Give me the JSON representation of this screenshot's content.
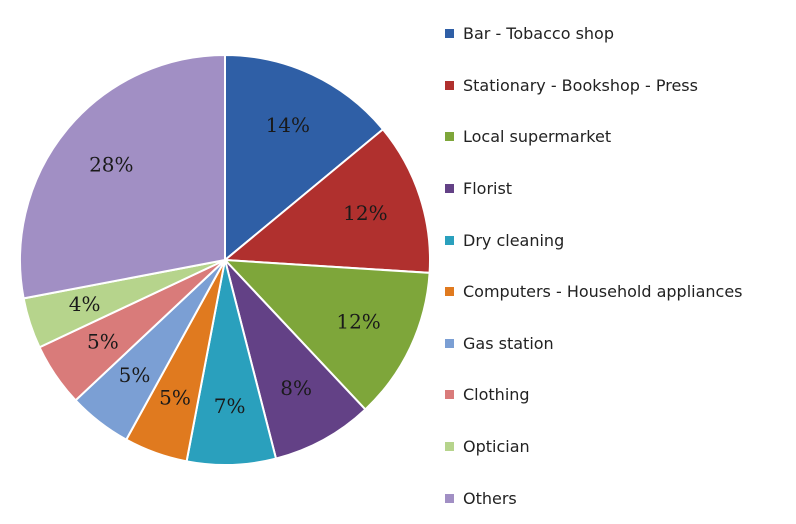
{
  "chart_data": {
    "type": "pie",
    "title": "",
    "legend_position": "right",
    "slices": [
      {
        "label": "Bar - Tobacco shop",
        "value": 14,
        "display": "14%",
        "color": "#2f5fa6"
      },
      {
        "label": "Stationary - Bookshop - Press",
        "value": 12,
        "display": "12%",
        "color": "#b0302e"
      },
      {
        "label": "Local supermarket",
        "value": 12,
        "display": "12%",
        "color": "#7ea63a"
      },
      {
        "label": "Florist",
        "value": 8,
        "display": "8%",
        "color": "#634186"
      },
      {
        "label": "Dry cleaning",
        "value": 7,
        "display": "7%",
        "color": "#2aa0bd"
      },
      {
        "label": "Computers - Household appliances",
        "value": 5,
        "display": "5%",
        "color": "#e07a1f"
      },
      {
        "label": "Gas station",
        "value": 5,
        "display": "5%",
        "color": "#7b9fd4"
      },
      {
        "label": "Clothing",
        "value": 5,
        "display": "5%",
        "color": "#d97b7a"
      },
      {
        "label": "Optician",
        "value": 4,
        "display": "4%",
        "color": "#b6d48c"
      },
      {
        "label": "Others",
        "value": 28,
        "display": "28%",
        "color": "#a18fc4"
      }
    ]
  }
}
